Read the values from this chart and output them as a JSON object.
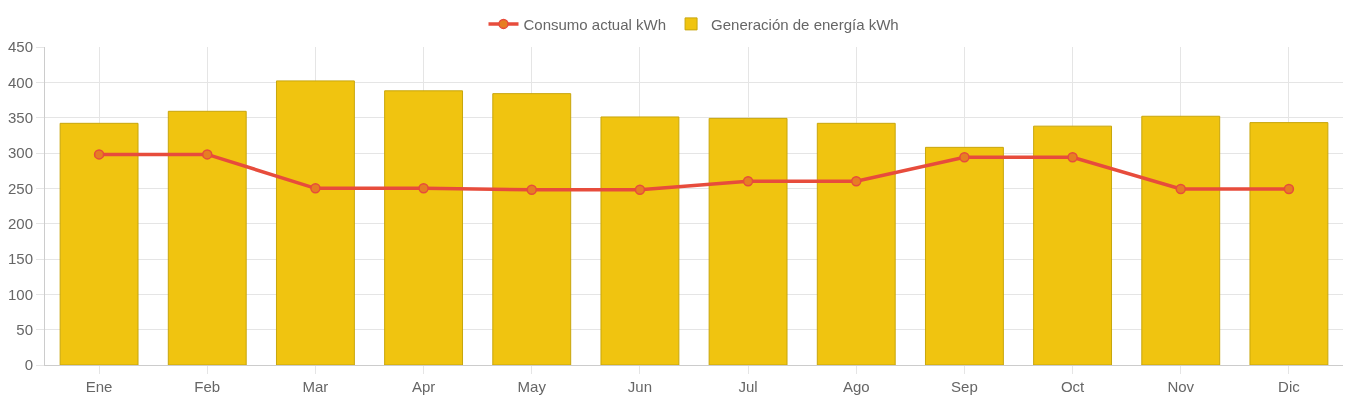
{
  "chart_data": {
    "type": "bar",
    "categories": [
      "Ene",
      "Feb",
      "Mar",
      "Apr",
      "May",
      "Jun",
      "Jul",
      "Ago",
      "Sep",
      "Oct",
      "Nov",
      "Dic"
    ],
    "series": [
      {
        "name": "Consumo actual kWh",
        "type": "line",
        "color": "#e74c3c",
        "marker": "circle",
        "values": [
          298,
          298,
          250,
          250,
          248,
          248,
          260,
          260,
          294,
          294,
          249,
          249
        ]
      },
      {
        "name": "Generación de energía kWh",
        "color": "#f0c410",
        "values": [
          342,
          359,
          402,
          388,
          384,
          351,
          349,
          342,
          308,
          338,
          352,
          343
        ]
      }
    ],
    "ylim": [
      0,
      450
    ],
    "yticks": [
      0,
      50,
      100,
      150,
      200,
      250,
      300,
      350,
      400,
      450
    ],
    "grid": true,
    "legend": "top"
  }
}
